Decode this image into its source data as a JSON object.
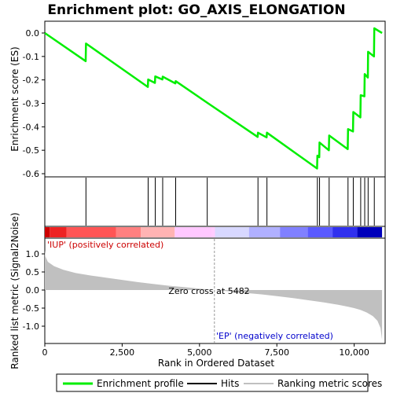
{
  "chart_data": [
    {
      "type": "line",
      "title": "Enrichment plot: GO_AXIS_ELONGATION",
      "ylabel": "Enrichment score (ES)",
      "xlim": [
        0,
        11000
      ],
      "ylim": [
        -0.6,
        0.0
      ],
      "yticks": [
        "0.0",
        "-0.1",
        "-0.2",
        "-0.3",
        "-0.4",
        "-0.5",
        "-0.6"
      ],
      "grid": false,
      "series": [
        {
          "name": "Enrichment profile",
          "color": "#00ee00",
          "x": [
            0,
            1320,
            1330,
            3330,
            3340,
            3560,
            3570,
            3800,
            3810,
            4220,
            4230,
            5280,
            6880,
            6890,
            7170,
            7180,
            8800,
            8810,
            8870,
            8880,
            9180,
            9190,
            9790,
            9800,
            9960,
            9970,
            10200,
            10210,
            10330,
            10340,
            10440,
            10450,
            10640,
            10650,
            10900
          ],
          "y": [
            0.0,
            -0.12,
            -0.045,
            -0.23,
            -0.198,
            -0.213,
            -0.185,
            -0.198,
            -0.186,
            -0.215,
            -0.205,
            -0.3,
            -0.443,
            -0.425,
            -0.445,
            -0.425,
            -0.578,
            -0.523,
            -0.53,
            -0.467,
            -0.5,
            -0.437,
            -0.495,
            -0.41,
            -0.42,
            -0.337,
            -0.36,
            -0.265,
            -0.27,
            -0.175,
            -0.19,
            -0.08,
            -0.1,
            0.02,
            0.0
          ]
        }
      ]
    },
    {
      "type": "hits",
      "series": [
        {
          "name": "Hits",
          "color": "#000000",
          "x": [
            1330,
            3340,
            3570,
            3810,
            4230,
            5250,
            6890,
            7180,
            8810,
            8880,
            9190,
            9800,
            9970,
            10210,
            10340,
            10450,
            10650
          ]
        }
      ]
    },
    {
      "type": "heatmap",
      "colors": [
        "#cc0000",
        "#ee2222",
        "#ff5555",
        "#ff8080",
        "#ffb3b3",
        "#ffc8ff",
        "#ffccff",
        "#d8d8ff",
        "#b0b0ff",
        "#8080ff",
        "#5a5aff",
        "#3030ee",
        "#0000bb"
      ],
      "stops": [
        0,
        160,
        700,
        2300,
        3100,
        4200,
        5400,
        5500,
        6600,
        7600,
        8500,
        9300,
        10100,
        10900
      ]
    },
    {
      "type": "area",
      "xlabel": "Rank in Ordered Dataset",
      "ylabel": "Ranked list metric (Signal2Noise)",
      "xlim": [
        0,
        11000
      ],
      "ylim": [
        -1.45,
        1.2
      ],
      "xticks": [
        "0",
        "2,500",
        "5,000",
        "7,500",
        "10,000"
      ],
      "xtick_values": [
        0,
        2500,
        5000,
        7500,
        10000
      ],
      "yticks": [
        "1.0",
        "0.5",
        "0.0",
        "-0.5",
        "-1.0"
      ],
      "ytick_values": [
        1.0,
        0.5,
        0.0,
        -0.5,
        -1.0
      ],
      "fill": "#c0c0c0",
      "series": [
        {
          "name": "Ranking metric scores",
          "x": [
            0,
            20,
            100,
            300,
            600,
            1000,
            1500,
            2000,
            2500,
            3000,
            3500,
            4000,
            4500,
            5000,
            5482,
            6000,
            6500,
            7000,
            7500,
            8000,
            8500,
            9000,
            9500,
            9800,
            10000,
            10200,
            10400,
            10600,
            10750,
            10850,
            10900
          ],
          "y": [
            1.1,
            0.93,
            0.78,
            0.66,
            0.56,
            0.47,
            0.4,
            0.34,
            0.28,
            0.22,
            0.17,
            0.12,
            0.08,
            0.04,
            0.0,
            -0.04,
            -0.08,
            -0.12,
            -0.17,
            -0.22,
            -0.28,
            -0.34,
            -0.41,
            -0.46,
            -0.5,
            -0.55,
            -0.62,
            -0.72,
            -0.85,
            -1.05,
            -1.38
          ]
        }
      ],
      "annotations": {
        "zero_cross": "Zero cross at 5482",
        "zero_cross_x": 5482,
        "positive": "'IUP' (positively correlated)",
        "negative": "'EP' (negatively correlated)"
      }
    }
  ],
  "legend": {
    "placement": "bottom",
    "items": [
      {
        "label": "Enrichment profile",
        "color": "#00ee00"
      },
      {
        "label": "Hits",
        "color": "#000000"
      },
      {
        "label": "Ranking metric scores",
        "color": "#c0c0c0"
      }
    ]
  }
}
